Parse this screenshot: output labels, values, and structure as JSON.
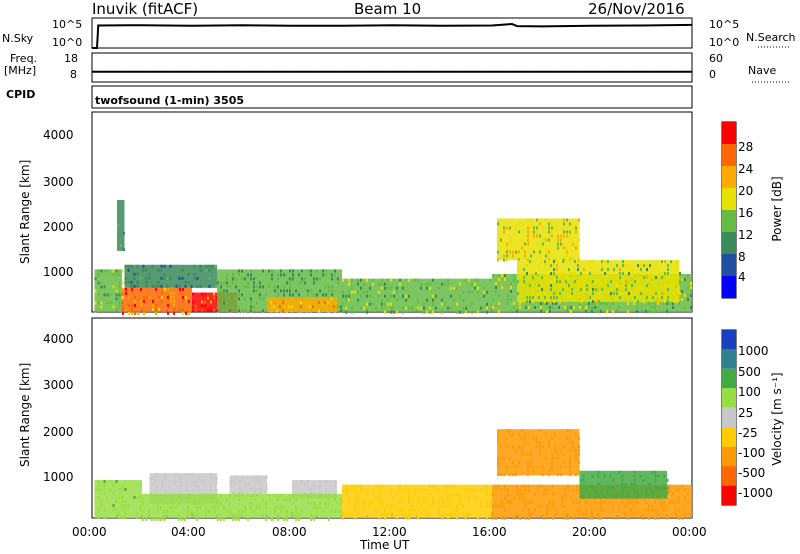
{
  "header": {
    "station": "Inuvik (fitACF)",
    "beam": "Beam 10",
    "date": "26/Nov/2016"
  },
  "top_panel": {
    "left_label": "N.Sky",
    "right_label": "N.Search",
    "left_ticks": [
      "10^5",
      "10^0"
    ],
    "right_ticks": [
      "10^5",
      "10^0"
    ]
  },
  "freq_panel": {
    "left_label_1": "Freq.",
    "left_label_2": "[MHz]",
    "right_label": "Nave",
    "left_ticks": [
      "18",
      "8"
    ],
    "right_ticks": [
      "60",
      "0"
    ]
  },
  "cpid": {
    "label": "CPID",
    "text": "twofsound (1-min) 3505"
  },
  "x_axis": {
    "label": "Time UT",
    "ticks": [
      "00:00",
      "04:00",
      "08:00",
      "12:00",
      "16:00",
      "20:00",
      "00:00"
    ]
  },
  "power_panel": {
    "ylabel": "Slant Range [km]",
    "yticks": [
      "4000",
      "3000",
      "2000",
      "1000"
    ],
    "colorbar_label": "Power [dB]",
    "colorbar_ticks": [
      "28",
      "24",
      "20",
      "16",
      "12",
      "8",
      "4"
    ],
    "colors": [
      "#0000ff",
      "#1f4fa0",
      "#3a8a5a",
      "#66bb44",
      "#e8e000",
      "#ffaa00",
      "#ff6600",
      "#ff0000"
    ]
  },
  "velocity_panel": {
    "ylabel": "Slant Range [km]",
    "yticks": [
      "4000",
      "3000",
      "2000",
      "1000"
    ],
    "colorbar_label": "Velocity [m s⁻¹]",
    "colorbar_ticks": [
      "1000",
      "500",
      "100",
      "25",
      "-25",
      "-100",
      "-500",
      "-1000"
    ],
    "colors": [
      "#1a40c0",
      "#2f7f8f",
      "#44aa44",
      "#99dd44",
      "#c8c8c8",
      "#ffcc00",
      "#ff9900",
      "#ff6600",
      "#ff0000"
    ]
  },
  "chart_data": [
    {
      "type": "line",
      "title": "N.Sky / N.Search",
      "xlabel": "Time UT",
      "x_range_hours": [
        0,
        24
      ],
      "series": [
        {
          "name": "N.Sky",
          "x": [
            0,
            0.2,
            0.25,
            2,
            4,
            6,
            8,
            10,
            12,
            14,
            16,
            16.8,
            17,
            18,
            20,
            22,
            24
          ],
          "y_level": [
            0.0,
            0.0,
            0.75,
            0.76,
            0.74,
            0.76,
            0.74,
            0.74,
            0.76,
            0.74,
            0.75,
            0.8,
            0.73,
            0.72,
            0.74,
            0.75,
            0.77
          ]
        },
        {
          "name": "N.Search",
          "x": [],
          "y_level": []
        }
      ]
    },
    {
      "type": "line",
      "title": "Freq. / Nave",
      "xlabel": "Time UT",
      "x_range_hours": [
        0,
        24
      ],
      "series": [
        {
          "name": "Freq. [MHz]",
          "x": [
            0,
            24
          ],
          "y": [
            11.5,
            11.5
          ]
        },
        {
          "name": "Nave",
          "x": [
            0,
            24
          ],
          "y": [
            22,
            22
          ]
        }
      ]
    },
    {
      "type": "heatmap",
      "title": "Power [dB]",
      "xlabel": "Time UT",
      "ylabel": "Slant Range [km]",
      "ylim": [
        180,
        4500
      ],
      "x_range_hours": [
        0,
        24
      ],
      "zlim": [
        0,
        30
      ],
      "regions": [
        {
          "t": [
            0.1,
            1.2
          ],
          "range": [
            180,
            1100
          ],
          "value": 14
        },
        {
          "t": [
            1.0,
            1.3
          ],
          "range": [
            1500,
            2600
          ],
          "value": 10
        },
        {
          "t": [
            1.2,
            4.0
          ],
          "range": [
            180,
            700
          ],
          "value": 26
        },
        {
          "t": [
            1.3,
            5.0
          ],
          "range": [
            700,
            1200
          ],
          "value": 10
        },
        {
          "t": [
            4.0,
            5.8
          ],
          "range": [
            180,
            600
          ],
          "value": 28
        },
        {
          "t": [
            5.0,
            10.0
          ],
          "range": [
            180,
            1100
          ],
          "value": 12
        },
        {
          "t": [
            7.0,
            9.8
          ],
          "range": [
            180,
            500
          ],
          "value": 22
        },
        {
          "t": [
            10.0,
            16.0
          ],
          "range": [
            180,
            900
          ],
          "value": 14
        },
        {
          "t": [
            16.2,
            19.5
          ],
          "range": [
            1300,
            2200
          ],
          "value": 18
        },
        {
          "t": [
            16.0,
            24.0
          ],
          "range": [
            180,
            1000
          ],
          "value": 14
        },
        {
          "t": [
            17.0,
            23.5
          ],
          "range": [
            400,
            1300
          ],
          "value": 16
        }
      ]
    },
    {
      "type": "heatmap",
      "title": "Velocity [m s⁻¹]",
      "xlabel": "Time UT",
      "ylabel": "Slant Range [km]",
      "ylim": [
        180,
        4500
      ],
      "x_range_hours": [
        0,
        24
      ],
      "zlim": [
        -1000,
        1000
      ],
      "regions": [
        {
          "t": [
            0.1,
            2.0
          ],
          "range": [
            180,
            1000
          ],
          "value": 80
        },
        {
          "t": [
            2.3,
            5.0
          ],
          "range": [
            500,
            1150
          ],
          "value": 0
        },
        {
          "t": [
            5.5,
            7.0
          ],
          "range": [
            700,
            1100
          ],
          "value": 0
        },
        {
          "t": [
            8.0,
            9.8
          ],
          "range": [
            600,
            1000
          ],
          "value": 0
        },
        {
          "t": [
            2.0,
            10.0
          ],
          "range": [
            180,
            700
          ],
          "value": 60
        },
        {
          "t": [
            10.0,
            16.0
          ],
          "range": [
            180,
            900
          ],
          "value": -60
        },
        {
          "t": [
            16.2,
            19.5
          ],
          "range": [
            1100,
            2100
          ],
          "value": -200
        },
        {
          "t": [
            16.0,
            24.0
          ],
          "range": [
            180,
            900
          ],
          "value": -150
        },
        {
          "t": [
            19.5,
            23.0
          ],
          "range": [
            600,
            1200
          ],
          "value": 150
        }
      ]
    }
  ]
}
